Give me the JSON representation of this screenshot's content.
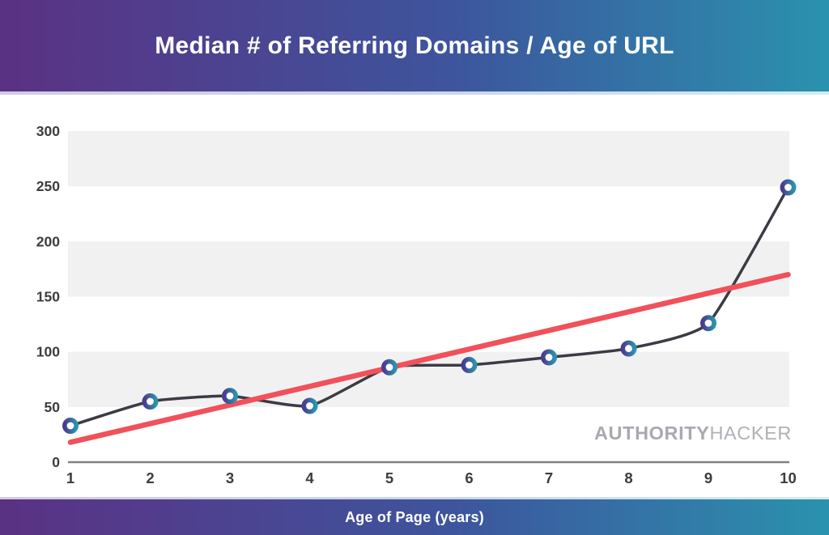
{
  "header": {
    "title": "Median # of Referring Domains / Age of URL"
  },
  "footer": {
    "xlabel": "Age of Page (years)"
  },
  "watermark": {
    "bold": "AUTHORITY",
    "light": "HACKER"
  },
  "chart_data": {
    "type": "line",
    "title": "Median # of Referring Domains / Age of URL",
    "xlabel": "Age of Page (years)",
    "ylabel": "",
    "x": [
      1,
      2,
      3,
      4,
      5,
      6,
      7,
      8,
      9,
      10
    ],
    "series": [
      {
        "name": "median-referring-domains",
        "values": [
          33,
          55,
          60,
          51,
          86,
          88,
          95,
          103,
          126,
          249
        ]
      },
      {
        "name": "trend-line",
        "values": [
          18,
          34.9,
          51.8,
          68.7,
          85.6,
          102.4,
          119.3,
          136.2,
          153.1,
          170
        ]
      }
    ],
    "ylim": [
      0,
      300
    ],
    "yticks": [
      0,
      50,
      100,
      150,
      200,
      250,
      300
    ],
    "grid_bands": [
      [
        50,
        100
      ],
      [
        150,
        200
      ],
      [
        250,
        300
      ]
    ],
    "legend": "none"
  },
  "colors": {
    "banner_gradient_left": "#5b3183",
    "banner_gradient_right": "#2a92ae",
    "band": "#f1f1f2",
    "axis_line": "#7f8086",
    "tick_text": "#3c3c41",
    "data_line": "#3b3b44",
    "trend_line": "#f0515a",
    "marker_ring_left": "#4c3b8e",
    "marker_ring_right": "#2b93ae",
    "marker_fill": "#ffffff",
    "watermark_text": "#a7aaaf",
    "title_text": "#ffffff"
  }
}
